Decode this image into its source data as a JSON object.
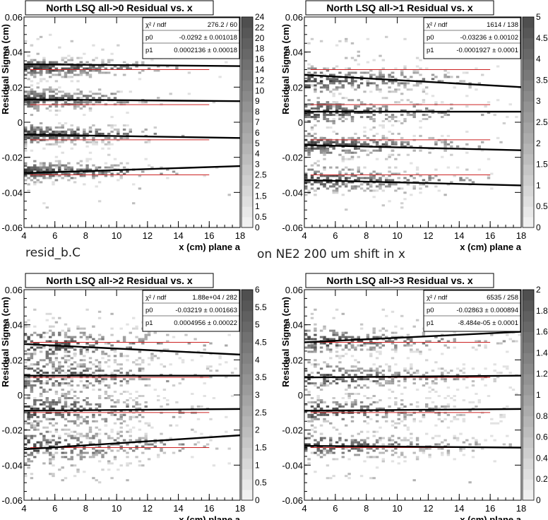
{
  "caption": {
    "left": "resid_b.C",
    "center": "on NE2 200 um shift in x"
  },
  "stats_labels": {
    "chi": "χ² / ndf",
    "p0": "p0",
    "p1": "p1"
  },
  "chart_data": [
    {
      "type": "heatmap",
      "title": "North LSQ all->0 Residual vs. x",
      "xlabel": "x (cm) plane a",
      "ylabel": "Residual Sigma (cm)",
      "xlim": [
        4,
        18
      ],
      "ylim": [
        -0.06,
        0.06
      ],
      "x_ticks": [
        "4",
        "6",
        "8",
        "10",
        "12",
        "14",
        "16",
        "18"
      ],
      "y_ticks": [
        "-0.06",
        "-0.04",
        "-0.02",
        "0",
        "0.02",
        "0.04",
        "0.06"
      ],
      "stats": {
        "chi2_ndf": "276.2 / 60",
        "p0": "-0.0292 ± 0.001018",
        "p1": "0.0002136 ± 0.00018"
      },
      "palette_labels": [
        "0",
        "0.5",
        "1",
        "1.5",
        "2",
        "2.5",
        "3",
        "4",
        "5",
        "6",
        "7",
        "8",
        "9",
        "10",
        "12",
        "14",
        "16",
        "18",
        "20",
        "22",
        "24"
      ],
      "red_lines": [
        0.03,
        0.01,
        -0.01,
        -0.03
      ],
      "fit_lines": [
        [
          0.033,
          0.032
        ],
        [
          0.013,
          0.012
        ],
        [
          -0.007,
          -0.009
        ],
        [
          -0.029,
          -0.025
        ]
      ],
      "band_centers": [
        0.031,
        0.013,
        -0.007,
        -0.028
      ],
      "band_spread": 0.003,
      "band_x_end": 10,
      "scatter_density": 0.12
    },
    {
      "type": "heatmap",
      "title": "North LSQ all->1 Residual vs. x",
      "xlabel": "x (cm) plane a",
      "ylabel": "Residual Sigma (cm)",
      "xlim": [
        4,
        18
      ],
      "ylim": [
        -0.06,
        0.06
      ],
      "x_ticks": [
        "4",
        "6",
        "8",
        "10",
        "12",
        "14",
        "16",
        "18"
      ],
      "y_ticks": [
        "-0.06",
        "-0.04",
        "-0.02",
        "0",
        "0.02",
        "0.04",
        "0.06"
      ],
      "stats": {
        "chi2_ndf": "1614 / 138",
        "p0": "-0.03236 ± 0.00102",
        "p1": "-0.0001927 ± 0.0001"
      },
      "palette_labels": [
        "0",
        "0.5",
        "1",
        "1.5",
        "2",
        "2.5",
        "3",
        "3.5",
        "4",
        "4.5",
        "5"
      ],
      "red_lines": [
        0.03,
        0.01,
        -0.01,
        -0.03
      ],
      "fit_lines": [
        [
          0.027,
          0.02
        ],
        [
          0.006,
          0.006
        ],
        [
          -0.013,
          -0.016
        ],
        [
          -0.033,
          -0.036
        ]
      ],
      "band_centers": [
        0.024,
        0.006,
        -0.013,
        -0.033
      ],
      "band_spread": 0.004,
      "band_x_end": 12,
      "scatter_density": 0.18
    },
    {
      "type": "heatmap",
      "title": "North LSQ all->2 Residual vs. x",
      "xlabel": "x (cm) plane a",
      "ylabel": "Residual Sigma (cm)",
      "xlim": [
        4,
        18
      ],
      "ylim": [
        -0.06,
        0.06
      ],
      "x_ticks": [
        "4",
        "6",
        "8",
        "10",
        "12",
        "14",
        "16",
        "18"
      ],
      "y_ticks": [
        "-0.06",
        "-0.04",
        "-0.02",
        "0",
        "0.02",
        "0.04",
        "0.06"
      ],
      "stats": {
        "chi2_ndf": "1.88e+04 / 282",
        "p0": "-0.03219 ± 0.001663",
        "p1": "0.0004956 ± 0.00022"
      },
      "palette_labels": [
        "0",
        "0.5",
        "1",
        "1.5",
        "2",
        "2.5",
        "3",
        "3.5",
        "4",
        "4.5",
        "5",
        "5.5",
        "6"
      ],
      "red_lines": [
        0.03,
        0.01,
        -0.01,
        -0.03
      ],
      "fit_lines": [
        [
          0.029,
          0.023
        ],
        [
          0.011,
          0.011
        ],
        [
          -0.009,
          -0.008
        ],
        [
          -0.031,
          -0.023
        ]
      ],
      "band_centers": [
        0.028,
        0.011,
        -0.009,
        -0.029
      ],
      "band_spread": 0.006,
      "band_x_end": 13,
      "scatter_density": 0.35
    },
    {
      "type": "heatmap",
      "title": "North LSQ all->3 Residual vs. x",
      "xlabel": "x (cm) plane a",
      "ylabel": "Residual Sigma (cm)",
      "xlim": [
        4,
        18
      ],
      "ylim": [
        -0.06,
        0.06
      ],
      "x_ticks": [
        "4",
        "6",
        "8",
        "10",
        "12",
        "14",
        "16",
        "18"
      ],
      "y_ticks": [
        "-0.06",
        "-0.04",
        "-0.02",
        "0",
        "0.02",
        "0.04",
        "0.06"
      ],
      "stats": {
        "chi2_ndf": "6535 / 258",
        "p0": "-0.02863 ± 0.000894",
        "p1": "-8.484e-05 ± 0.0001"
      },
      "palette_labels": [
        "0",
        "0.2",
        "0.4",
        "0.6",
        "0.8",
        "1",
        "1.2",
        "1.4",
        "1.6",
        "1.8",
        "2"
      ],
      "red_lines": [
        0.03,
        0.01,
        -0.01,
        -0.03
      ],
      "fit_lines": [
        [
          0.03,
          0.036
        ],
        [
          0.01,
          0.011
        ],
        [
          -0.009,
          -0.008
        ],
        [
          -0.029,
          -0.03
        ]
      ],
      "band_centers": [
        0.031,
        0.01,
        -0.009,
        -0.029
      ],
      "band_spread": 0.004,
      "band_x_end": 16,
      "scatter_density": 0.3
    }
  ]
}
